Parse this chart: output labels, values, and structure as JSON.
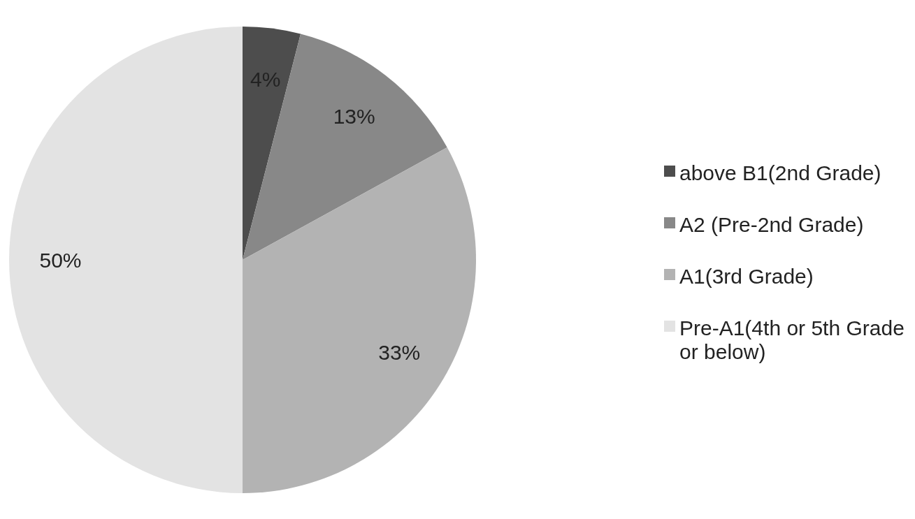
{
  "chart_data": {
    "type": "pie",
    "categories": [
      "above B1(2nd Grade)",
      "A2 (Pre-2nd Grade)",
      "A1(3rd Grade)",
      "Pre-A1(4th or 5th Grade or below)"
    ],
    "values": [
      4,
      13,
      33,
      50
    ],
    "colors": [
      "#4d4d4d",
      "#888888",
      "#b3b3b3",
      "#e3e3e3"
    ],
    "value_labels": [
      "4%",
      "13%",
      "33%",
      "50%"
    ],
    "legend": "right"
  }
}
